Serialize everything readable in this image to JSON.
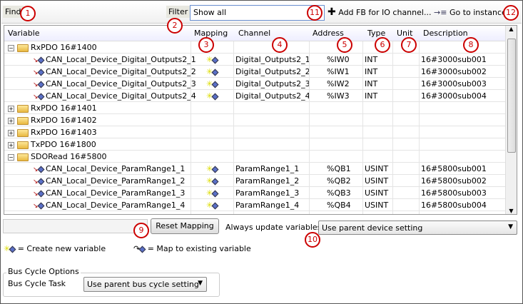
{
  "toolbar": {
    "find_label": "Find",
    "filter_label": "Filter",
    "filter_value": "Show all",
    "add_fb_label": "Add FB for IO channel...",
    "goto_label": "Go to instance"
  },
  "table": {
    "headers": [
      "Variable",
      "Mapping",
      "Channel",
      "Address",
      "Type",
      "Unit",
      "Description"
    ],
    "rows": [
      {
        "kind": "group",
        "expanded": true,
        "name": "RxPDO 16#1400"
      },
      {
        "kind": "item",
        "name": "CAN_Local_Device_Digital_Outputs2_1",
        "channel": "Digital_Outputs2_1",
        "address": "%IW0",
        "type": "INT",
        "unit": "",
        "description": "16#3000sub001"
      },
      {
        "kind": "item",
        "name": "CAN_Local_Device_Digital_Outputs2_2",
        "channel": "Digital_Outputs2_2",
        "address": "%IW1",
        "type": "INT",
        "unit": "",
        "description": "16#3000sub002"
      },
      {
        "kind": "item",
        "name": "CAN_Local_Device_Digital_Outputs2_3",
        "channel": "Digital_Outputs2_3",
        "address": "%IW2",
        "type": "INT",
        "unit": "",
        "description": "16#3000sub003"
      },
      {
        "kind": "item",
        "name": "CAN_Local_Device_Digital_Outputs2_4",
        "channel": "Digital_Outputs2_4",
        "address": "%IW3",
        "type": "INT",
        "unit": "",
        "description": "16#3000sub004"
      },
      {
        "kind": "group",
        "expanded": false,
        "name": "RxPDO 16#1401"
      },
      {
        "kind": "group",
        "expanded": false,
        "name": "RxPDO 16#1402"
      },
      {
        "kind": "group",
        "expanded": false,
        "name": "RxPDO 16#1403"
      },
      {
        "kind": "group",
        "expanded": false,
        "name": "TxPDO 16#1800"
      },
      {
        "kind": "group",
        "expanded": true,
        "name": "SDORead 16#5800"
      },
      {
        "kind": "item",
        "name": "CAN_Local_Device_ParamRange1_1",
        "channel": "ParamRange1_1",
        "address": "%QB1",
        "type": "USINT",
        "unit": "",
        "description": "16#5800sub001"
      },
      {
        "kind": "item",
        "name": "CAN_Local_Device_ParamRange1_2",
        "channel": "ParamRange1_2",
        "address": "%QB2",
        "type": "USINT",
        "unit": "",
        "description": "16#5800sub002"
      },
      {
        "kind": "item",
        "name": "CAN_Local_Device_ParamRange1_3",
        "channel": "ParamRange1_3",
        "address": "%QB3",
        "type": "USINT",
        "unit": "",
        "description": "16#5800sub003"
      },
      {
        "kind": "item",
        "name": "CAN_Local_Device_ParamRange1_4",
        "channel": "ParamRange1_4",
        "address": "%QB4",
        "type": "USINT",
        "unit": "",
        "description": "16#5800sub004"
      }
    ]
  },
  "bottom": {
    "reset_label": "Reset Mapping",
    "always_update_label": "Always update variables:",
    "always_update_value": "Use parent device setting"
  },
  "legend": {
    "create_label": "= Create new variable",
    "map_label": "= Map to existing variable"
  },
  "bus_cycle": {
    "group_label": "Bus Cycle Options",
    "task_label": "Bus Cycle Task",
    "task_value": "Use parent bus cycle setting"
  },
  "callouts": [
    "1",
    "2",
    "3",
    "4",
    "5",
    "6",
    "7",
    "8",
    "9",
    "10",
    "11",
    "12"
  ],
  "colors": {
    "callout": "#cc0000",
    "filter_border": "#6a8fd0"
  }
}
